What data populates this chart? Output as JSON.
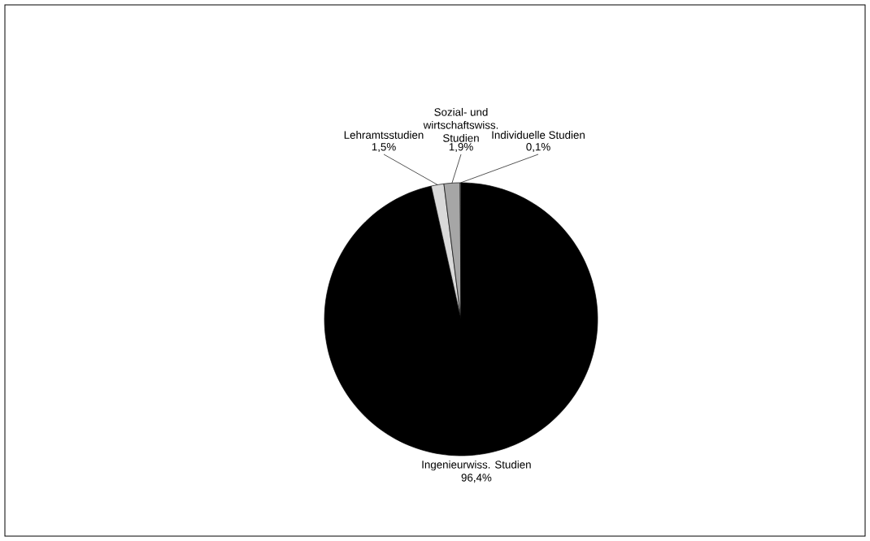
{
  "chart_data": {
    "type": "pie",
    "categories": [
      "Ingenieurwiss. Studien",
      "Lehramtsstudien",
      "Sozial- und wirtschaftswiss. Studien",
      "Individuelle Studien"
    ],
    "values": [
      96.4,
      1.5,
      1.9,
      0.1
    ],
    "value_labels": [
      "96,4%",
      "1,5%",
      "1,9%",
      "0,1%"
    ],
    "colors": [
      "#000000",
      "#d9d9d9",
      "#a6a6a6",
      "#808080"
    ]
  }
}
